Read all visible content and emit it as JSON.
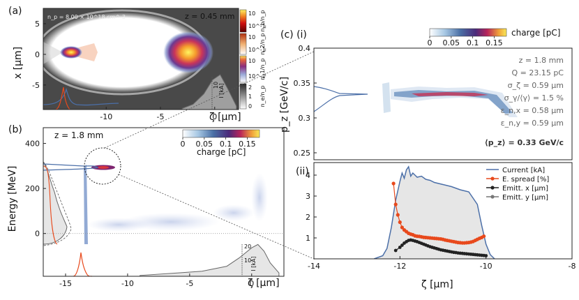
{
  "colors": {
    "current": "#4b6fa8",
    "espread": "#e8491c",
    "emit_x": "#222222",
    "emit_y": "#777777",
    "fill_gray": "#e6e6e6",
    "dark_bg": "#3b3b3b"
  },
  "chart_data": [
    {
      "id": "a",
      "type": "heatmap",
      "panel_label": "(a)",
      "density_label": "n_p = 8.00 × 10^18 cm^-3",
      "z_label": "z =  0.45 mm",
      "xlabel": "ζ [μm]",
      "ylabel": "x [μm]",
      "xlim": [
        -15.8,
        2.2
      ],
      "ylim": [
        -9,
        7.5
      ],
      "xticks": [
        -10,
        -5,
        0
      ],
      "yticks": [
        -5,
        0,
        5
      ],
      "colorbars": [
        {
          "label": "n_b/n_p",
          "ticks": [
            "10",
            "10^-1"
          ]
        },
        {
          "label": "n_2/n_p",
          "ticks": [
            "10",
            "10^-1"
          ]
        },
        {
          "label": "n_1/n_p",
          "ticks": [
            "10",
            "10^-1"
          ]
        },
        {
          "label": "n_e/n_p",
          "ticks": [
            "2",
            "1",
            "0"
          ]
        }
      ],
      "current_axis": {
        "label": "I [kA]",
        "ticks": [
          "10"
        ]
      },
      "current_profile": {
        "x": [
          -3,
          -2,
          -1,
          -0.2,
          0.5,
          1.2,
          2
        ],
        "y": [
          0.3,
          1.5,
          4.5,
          8.5,
          10,
          6,
          1
        ]
      }
    },
    {
      "id": "b",
      "type": "heatmap",
      "panel_label": "(b)",
      "z_label": "z = 1.8 mm",
      "xlabel": "ζ [μm]",
      "ylabel": "Energy [MeV]",
      "xlim": [
        -16.8,
        2.6
      ],
      "ylim": [
        -190,
        470
      ],
      "xticks": [
        -15,
        -10,
        -5,
        0
      ],
      "yticks": [
        0,
        200,
        400
      ],
      "colorbar": {
        "label": "charge [pC]",
        "ticks": [
          "0",
          "0.05",
          "0.1",
          "0.15"
        ]
      },
      "current_axis": {
        "label": "I [kA]",
        "ticks": [
          "10",
          "20"
        ]
      },
      "current_profile": {
        "x": [
          -9,
          -6,
          -4,
          -2,
          -1,
          0,
          0.5,
          1,
          1.5,
          2.2
        ],
        "y": [
          0.5,
          2,
          3,
          6,
          11,
          17,
          19,
          15,
          8,
          2
        ]
      }
    },
    {
      "id": "c_i",
      "type": "heatmap",
      "panel_label": "(c) (i)",
      "xlim": [
        -14,
        -8
      ],
      "ylim": [
        0.24,
        0.4
      ],
      "yticks": [
        0.25,
        0.3,
        0.35,
        0.4
      ],
      "ylabel": "p_z [GeV/c]",
      "colorbar": {
        "label": "charge [pC]",
        "ticks": [
          "0",
          "0.05",
          "0.1",
          "0.15"
        ]
      },
      "annotations": [
        "z =   1.8 mm",
        "Q = 23.15 pC",
        "σ_ζ = 0.59 μm",
        "σ_γ/⟨γ⟩ =  1.5 %",
        "ε_n,x = 0.58 μm",
        "ε_n,y = 0.59 μm",
        "⟨p_z⟩ = 0.33 GeV/c"
      ]
    },
    {
      "id": "c_ii",
      "type": "line",
      "panel_label": "(ii)",
      "xlabel": "ζ [μm]",
      "xlim": [
        -14,
        -8
      ],
      "ylim": [
        0,
        4.6
      ],
      "xticks": [
        -14,
        -12,
        -10,
        -8
      ],
      "yticks": [
        1,
        2,
        3,
        4
      ],
      "legend_position": "top-right",
      "series": [
        {
          "name": "Current [kA]",
          "x": [
            -12.6,
            -12.4,
            -12.3,
            -12.2,
            -12.1,
            -12.0,
            -11.95,
            -11.9,
            -11.85,
            -11.8,
            -11.75,
            -11.7,
            -11.65,
            -11.6,
            -11.5,
            -11.4,
            -11.3,
            -11.2,
            -11.1,
            -11.0,
            -10.8,
            -10.6,
            -10.4,
            -10.2,
            -10.1,
            -10.0,
            -9.9,
            -9.8
          ],
          "y": [
            0.0,
            0.15,
            0.5,
            1.5,
            2.8,
            3.7,
            4.1,
            3.85,
            4.25,
            4.4,
            3.95,
            4.1,
            4.0,
            3.9,
            3.95,
            3.8,
            3.75,
            3.65,
            3.6,
            3.55,
            3.45,
            3.3,
            3.2,
            2.6,
            1.6,
            0.7,
            0.2,
            0.0
          ]
        },
        {
          "name": "E. spread [%]",
          "x": [
            -12.15,
            -12.1,
            -12.05,
            -12.0,
            -11.95,
            -11.9,
            -11.85,
            -11.8,
            -11.75,
            -11.7,
            -11.65,
            -11.6,
            -11.55,
            -11.5,
            -11.45,
            -11.4,
            -11.35,
            -11.3,
            -11.25,
            -11.2,
            -11.15,
            -11.1,
            -11.05,
            -11.0,
            -10.95,
            -10.9,
            -10.85,
            -10.8,
            -10.75,
            -10.7,
            -10.65,
            -10.6,
            -10.55,
            -10.5,
            -10.45,
            -10.4,
            -10.35,
            -10.3,
            -10.25,
            -10.2,
            -10.15,
            -10.1,
            -10.05
          ],
          "y": [
            3.6,
            2.6,
            2.1,
            1.75,
            1.5,
            1.38,
            1.3,
            1.22,
            1.18,
            1.15,
            1.1,
            1.08,
            1.07,
            1.05,
            1.03,
            1.02,
            1.01,
            1.0,
            0.99,
            0.98,
            0.97,
            0.96,
            0.95,
            0.93,
            0.9,
            0.88,
            0.86,
            0.84,
            0.82,
            0.8,
            0.78,
            0.77,
            0.76,
            0.76,
            0.77,
            0.78,
            0.8,
            0.83,
            0.88,
            0.93,
            0.98,
            1.02,
            1.08
          ]
        },
        {
          "name": "Emitt. x [μm]",
          "x": [
            -12.1,
            -12.0,
            -11.95,
            -11.9,
            -11.85,
            -11.8,
            -11.75,
            -11.7,
            -11.65,
            -11.6,
            -11.55,
            -11.5,
            -11.45,
            -11.4,
            -11.35,
            -11.3,
            -11.25,
            -11.2,
            -11.15,
            -11.1,
            -11.05,
            -11.0,
            -10.95,
            -10.9,
            -10.85,
            -10.8,
            -10.75,
            -10.7,
            -10.65,
            -10.6,
            -10.55,
            -10.5,
            -10.45,
            -10.4,
            -10.35,
            -10.3,
            -10.25,
            -10.2,
            -10.15,
            -10.1,
            -10.05,
            -10.0
          ],
          "y": [
            0.4,
            0.55,
            0.65,
            0.75,
            0.82,
            0.88,
            0.9,
            0.88,
            0.85,
            0.82,
            0.78,
            0.74,
            0.7,
            0.66,
            0.62,
            0.58,
            0.55,
            0.52,
            0.49,
            0.46,
            0.43,
            0.41,
            0.39,
            0.37,
            0.35,
            0.33,
            0.31,
            0.3,
            0.28,
            0.27,
            0.26,
            0.25,
            0.24,
            0.23,
            0.22,
            0.21,
            0.2,
            0.19,
            0.18,
            0.17,
            0.16,
            0.15
          ]
        },
        {
          "name": "Emitt. y [μm]",
          "x": [],
          "y": []
        }
      ]
    }
  ]
}
